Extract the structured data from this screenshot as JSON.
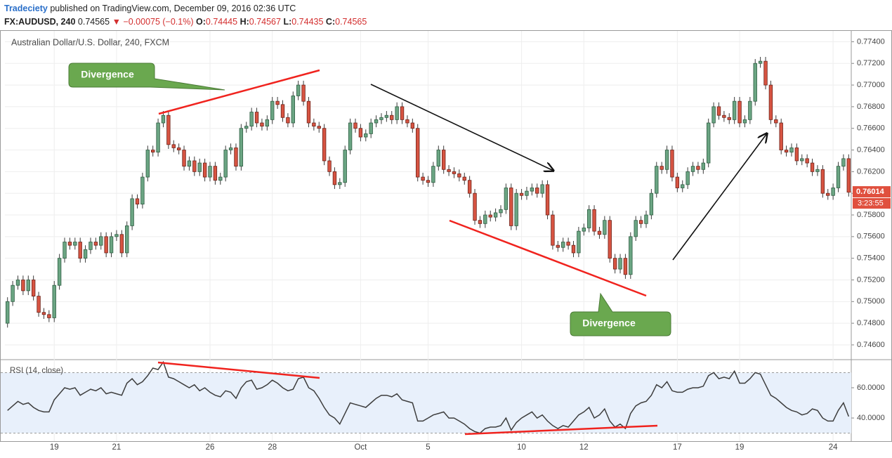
{
  "header": {
    "publisher": "Tradeciety",
    "published_text": "published on TradingView.com, December 09, 2016 02:36 UTC",
    "symbol": "FX:AUDUSD, 240",
    "last": "0.74565",
    "change": "−0.00075 (−0.1%)",
    "ohlc": [
      {
        "label": "O:",
        "value": "0.74445"
      },
      {
        "label": "H:",
        "value": "0.74567"
      },
      {
        "label": "L:",
        "value": "0.74435"
      },
      {
        "label": "C:",
        "value": "0.74565"
      }
    ]
  },
  "chart_data": [
    {
      "type": "candlestick",
      "title": "Australian Dollar/U.S. Dollar, 240, FXCM",
      "up_color": "#6ba583",
      "down_color": "#d75442",
      "grid": true,
      "categories": [
        null,
        null,
        null,
        null,
        null,
        null,
        null,
        null,
        null,
        "19",
        null,
        null,
        null,
        null,
        null,
        null,
        null,
        null,
        null,
        null,
        null,
        "21",
        null,
        null,
        null,
        null,
        null,
        null,
        null,
        null,
        null,
        null,
        null,
        null,
        null,
        null,
        null,
        null,
        null,
        "26",
        null,
        null,
        null,
        null,
        null,
        null,
        null,
        null,
        null,
        null,
        null,
        "28",
        null,
        null,
        null,
        null,
        null,
        null,
        null,
        null,
        null,
        null,
        null,
        null,
        null,
        null,
        null,
        null,
        "Oct",
        null,
        null,
        null,
        null,
        null,
        null,
        null,
        null,
        null,
        null,
        null,
        null,
        "5",
        null,
        null,
        null,
        null,
        null,
        null,
        null,
        null,
        null,
        null,
        null,
        null,
        null,
        null,
        null,
        null,
        null,
        "10",
        null,
        null,
        null,
        null,
        null,
        null,
        null,
        null,
        null,
        null,
        null,
        "12",
        null,
        null,
        null,
        null,
        null,
        null,
        null,
        null,
        null,
        null,
        null,
        null,
        null,
        null,
        null,
        null,
        null,
        "17",
        null,
        null,
        null,
        null,
        null,
        null,
        null,
        null,
        null,
        null,
        null,
        "19",
        null,
        null,
        null,
        null,
        null,
        null,
        null,
        null,
        null,
        null,
        null,
        null,
        null,
        null,
        null,
        null,
        null,
        "24",
        null,
        null,
        null
      ],
      "open": [
        0.748,
        0.75,
        0.7515,
        0.752,
        0.751,
        0.752,
        0.7505,
        0.749,
        0.7488,
        0.7485,
        0.7515,
        0.754,
        0.7555,
        0.7552,
        0.7555,
        0.754,
        0.7548,
        0.7555,
        0.7552,
        0.756,
        0.7545,
        0.756,
        0.7562,
        0.7545,
        0.757,
        0.7595,
        0.759,
        0.7615,
        0.764,
        0.7638,
        0.7665,
        0.7672,
        0.7645,
        0.7642,
        0.764,
        0.7625,
        0.763,
        0.762,
        0.7628,
        0.7615,
        0.7625,
        0.7612,
        0.7615,
        0.764,
        0.7642,
        0.7625,
        0.766,
        0.7662,
        0.7675,
        0.7665,
        0.7662,
        0.7668,
        0.7685,
        0.7682,
        0.767,
        0.7665,
        0.769,
        0.77,
        0.7685,
        0.7665,
        0.7662,
        0.766,
        0.763,
        0.762,
        0.7608,
        0.761,
        0.764,
        0.7665,
        0.766,
        0.7652,
        0.7655,
        0.7665,
        0.7668,
        0.767,
        0.7672,
        0.7668,
        0.768,
        0.7668,
        0.7665,
        0.766,
        0.7615,
        0.7612,
        0.761,
        0.7625,
        0.764,
        0.7622,
        0.762,
        0.7618,
        0.7615,
        0.7612,
        0.76,
        0.7575,
        0.7572,
        0.758,
        0.7578,
        0.7582,
        0.7585,
        0.7605,
        0.757,
        0.76,
        0.7598,
        0.7602,
        0.7605,
        0.76,
        0.7608,
        0.758,
        0.7552,
        0.755,
        0.7555,
        0.7552,
        0.7545,
        0.7565,
        0.7568,
        0.7585,
        0.7565,
        0.7562,
        0.7575,
        0.754,
        0.753,
        0.754,
        0.7525,
        0.756,
        0.7575,
        0.7572,
        0.758,
        0.76,
        0.7625,
        0.7622,
        0.764,
        0.7615,
        0.7605,
        0.7608,
        0.762,
        0.7625,
        0.7622,
        0.7628,
        0.7665,
        0.768,
        0.7672,
        0.767,
        0.7668,
        0.7685,
        0.7665,
        0.7668,
        0.7685,
        0.772,
        0.7722,
        0.77,
        0.7668,
        0.7665,
        0.764,
        0.7638,
        0.7642,
        0.763,
        0.7632,
        0.7628,
        0.762,
        0.7622,
        0.76,
        0.7598,
        0.7605,
        0.7625,
        0.7632
      ],
      "high": [
        0.7504,
        0.7519,
        0.7524,
        0.7524,
        0.7524,
        0.7524,
        0.7509,
        0.7494,
        0.7492,
        0.7519,
        0.7544,
        0.7559,
        0.7559,
        0.7559,
        0.7559,
        0.7552,
        0.7559,
        0.7559,
        0.7564,
        0.7564,
        0.7564,
        0.7566,
        0.7566,
        0.7574,
        0.7599,
        0.7599,
        0.7619,
        0.7644,
        0.7644,
        0.7669,
        0.7676,
        0.7676,
        0.7649,
        0.7646,
        0.7644,
        0.7634,
        0.7634,
        0.7632,
        0.7632,
        0.7629,
        0.7629,
        0.7619,
        0.7644,
        0.7646,
        0.7646,
        0.7664,
        0.7666,
        0.7679,
        0.7679,
        0.7669,
        0.7672,
        0.7689,
        0.7689,
        0.7686,
        0.7674,
        0.7694,
        0.7704,
        0.7704,
        0.7689,
        0.7669,
        0.7666,
        0.7664,
        0.7634,
        0.7624,
        0.7614,
        0.7644,
        0.7669,
        0.7669,
        0.7664,
        0.7659,
        0.7669,
        0.7672,
        0.7674,
        0.7676,
        0.7676,
        0.7684,
        0.7684,
        0.7672,
        0.7669,
        0.7664,
        0.7619,
        0.7616,
        0.7629,
        0.7644,
        0.7644,
        0.7626,
        0.7624,
        0.7622,
        0.7619,
        0.7616,
        0.7604,
        0.7579,
        0.7584,
        0.7584,
        0.7586,
        0.7589,
        0.7609,
        0.7609,
        0.7604,
        0.7604,
        0.7606,
        0.7609,
        0.7609,
        0.7612,
        0.7612,
        0.7584,
        0.7556,
        0.7559,
        0.7559,
        0.7556,
        0.7569,
        0.7572,
        0.7589,
        0.7589,
        0.7569,
        0.7579,
        0.7579,
        0.7544,
        0.7544,
        0.7544,
        0.7564,
        0.7579,
        0.7579,
        0.7584,
        0.7604,
        0.7629,
        0.7629,
        0.7644,
        0.7644,
        0.7619,
        0.7612,
        0.7624,
        0.7629,
        0.7629,
        0.7632,
        0.7669,
        0.7684,
        0.7684,
        0.7676,
        0.7674,
        0.7689,
        0.7689,
        0.7672,
        0.7689,
        0.7724,
        0.7726,
        0.7726,
        0.7704,
        0.7672,
        0.7669,
        0.7644,
        0.7646,
        0.7646,
        0.7636,
        0.7636,
        0.7632,
        0.7626,
        0.7626,
        0.7604,
        0.7609,
        0.7629,
        0.7636,
        0.7636
      ],
      "low": [
        0.7476,
        0.7496,
        0.7511,
        0.7506,
        0.7506,
        0.7501,
        0.7486,
        0.7484,
        0.7481,
        0.7481,
        0.7511,
        0.7536,
        0.7548,
        0.7548,
        0.7536,
        0.7536,
        0.7544,
        0.7548,
        0.7548,
        0.7541,
        0.7541,
        0.7556,
        0.7541,
        0.7541,
        0.7566,
        0.7586,
        0.7586,
        0.7611,
        0.7634,
        0.7634,
        0.7661,
        0.7641,
        0.7638,
        0.7636,
        0.7621,
        0.7621,
        0.7616,
        0.7616,
        0.7611,
        0.7611,
        0.7608,
        0.7608,
        0.7611,
        0.7636,
        0.7621,
        0.7621,
        0.7656,
        0.7658,
        0.7661,
        0.7658,
        0.7658,
        0.7664,
        0.7678,
        0.7666,
        0.7661,
        0.7661,
        0.7686,
        0.7681,
        0.7661,
        0.7658,
        0.7656,
        0.7626,
        0.7616,
        0.7604,
        0.7604,
        0.7606,
        0.7636,
        0.7656,
        0.7648,
        0.7648,
        0.7651,
        0.7661,
        0.7664,
        0.7666,
        0.7664,
        0.7664,
        0.7664,
        0.7661,
        0.7656,
        0.7611,
        0.7608,
        0.7606,
        0.7606,
        0.7621,
        0.7618,
        0.7616,
        0.7614,
        0.7611,
        0.7608,
        0.7596,
        0.7571,
        0.7568,
        0.7568,
        0.7574,
        0.7574,
        0.7578,
        0.7581,
        0.7566,
        0.7566,
        0.7594,
        0.7594,
        0.7598,
        0.7596,
        0.7596,
        0.7576,
        0.7548,
        0.7546,
        0.7546,
        0.7548,
        0.7541,
        0.7541,
        0.7561,
        0.7564,
        0.7561,
        0.7558,
        0.7558,
        0.7536,
        0.7526,
        0.7526,
        0.7521,
        0.7521,
        0.7556,
        0.7568,
        0.7568,
        0.7576,
        0.7596,
        0.7618,
        0.7618,
        0.7611,
        0.7601,
        0.7601,
        0.7604,
        0.7616,
        0.7618,
        0.7618,
        0.7624,
        0.7661,
        0.7668,
        0.7666,
        0.7664,
        0.7664,
        0.7661,
        0.7661,
        0.7664,
        0.7681,
        0.7716,
        0.7696,
        0.7664,
        0.7661,
        0.7636,
        0.7634,
        0.7634,
        0.7626,
        0.7626,
        0.7624,
        0.7616,
        0.7616,
        0.7596,
        0.7594,
        0.7594,
        0.7601,
        0.7621,
        0.7597
      ],
      "close": [
        0.75,
        0.7515,
        0.752,
        0.751,
        0.752,
        0.7505,
        0.749,
        0.7488,
        0.7485,
        0.7515,
        0.754,
        0.7555,
        0.7552,
        0.7555,
        0.754,
        0.7548,
        0.7555,
        0.7552,
        0.756,
        0.7545,
        0.756,
        0.7562,
        0.7545,
        0.757,
        0.7595,
        0.759,
        0.7615,
        0.764,
        0.7638,
        0.7665,
        0.7672,
        0.7645,
        0.7642,
        0.764,
        0.7625,
        0.763,
        0.762,
        0.7628,
        0.7615,
        0.7625,
        0.7612,
        0.7615,
        0.764,
        0.7642,
        0.7625,
        0.766,
        0.7662,
        0.7675,
        0.7665,
        0.7662,
        0.7668,
        0.7685,
        0.7682,
        0.767,
        0.7665,
        0.769,
        0.77,
        0.7685,
        0.7665,
        0.7662,
        0.766,
        0.763,
        0.762,
        0.7608,
        0.761,
        0.764,
        0.7665,
        0.766,
        0.7652,
        0.7655,
        0.7665,
        0.7668,
        0.767,
        0.7672,
        0.7668,
        0.768,
        0.7668,
        0.7665,
        0.766,
        0.7615,
        0.7612,
        0.761,
        0.7625,
        0.764,
        0.7622,
        0.762,
        0.7618,
        0.7615,
        0.7612,
        0.76,
        0.7575,
        0.7572,
        0.758,
        0.7578,
        0.7582,
        0.7585,
        0.7605,
        0.757,
        0.76,
        0.7598,
        0.7602,
        0.7605,
        0.76,
        0.7608,
        0.758,
        0.7552,
        0.755,
        0.7555,
        0.7552,
        0.7545,
        0.7565,
        0.7568,
        0.7585,
        0.7565,
        0.7562,
        0.7575,
        0.754,
        0.753,
        0.754,
        0.7525,
        0.756,
        0.7575,
        0.7572,
        0.758,
        0.76,
        0.7625,
        0.7622,
        0.764,
        0.7615,
        0.7605,
        0.7608,
        0.762,
        0.7625,
        0.7622,
        0.7628,
        0.7665,
        0.768,
        0.7672,
        0.767,
        0.7668,
        0.7685,
        0.7665,
        0.7668,
        0.7685,
        0.772,
        0.7722,
        0.77,
        0.7668,
        0.7665,
        0.764,
        0.7638,
        0.7642,
        0.763,
        0.7632,
        0.7628,
        0.762,
        0.7622,
        0.76,
        0.7598,
        0.7605,
        0.7625,
        0.7632,
        0.7601
      ],
      "ylim": [
        0.7447,
        0.775
      ],
      "yticks": [
        {
          "value": 0.746,
          "label": "0.74600"
        },
        {
          "value": 0.748,
          "label": "0.74800"
        },
        {
          "value": 0.75,
          "label": "0.75000"
        },
        {
          "value": 0.752,
          "label": "0.75200"
        },
        {
          "value": 0.754,
          "label": "0.75400"
        },
        {
          "value": 0.756,
          "label": "0.75600"
        },
        {
          "value": 0.758,
          "label": "0.75800"
        },
        {
          "value": 0.76,
          "label": "0.76000"
        },
        {
          "value": 0.762,
          "label": "0.76200"
        },
        {
          "value": 0.764,
          "label": "0.76400"
        },
        {
          "value": 0.766,
          "label": "0.76600"
        },
        {
          "value": 0.768,
          "label": "0.76800"
        },
        {
          "value": 0.77,
          "label": "0.77000"
        },
        {
          "value": 0.772,
          "label": "0.77200"
        },
        {
          "value": 0.774,
          "label": "0.77400"
        }
      ],
      "last_price": 0.76014,
      "countdown": "3:23:55",
      "annotations": [
        "Divergence",
        "Divergence"
      ]
    },
    {
      "type": "line",
      "title": "RSI (14, close)",
      "color": "#3d3d3d",
      "band": [
        30,
        70
      ],
      "band_color": "#e8f0fb",
      "values": [
        45,
        48,
        51,
        49,
        50,
        47,
        45,
        44,
        44,
        52,
        56,
        60,
        59,
        60,
        55,
        57,
        59,
        58,
        60,
        56,
        57,
        56,
        55,
        63,
        66,
        62,
        64,
        68,
        73,
        72,
        77,
        67,
        66,
        64,
        62,
        60,
        62,
        58,
        60,
        57,
        55,
        54,
        58,
        57,
        53,
        60,
        64,
        65,
        59,
        60,
        62,
        65,
        63,
        60,
        58,
        59,
        66,
        67,
        60,
        58,
        53,
        47,
        42,
        40,
        36,
        43,
        50,
        49,
        48,
        47,
        50,
        53,
        55,
        55,
        54,
        56,
        52,
        51,
        50,
        38,
        38,
        40,
        42,
        43,
        44,
        40,
        40,
        38,
        36,
        33,
        31,
        30,
        33,
        34,
        34,
        35,
        40,
        32,
        37,
        40,
        42,
        44,
        40,
        42,
        38,
        35,
        33,
        35,
        34,
        38,
        42,
        44,
        47,
        40,
        42,
        46,
        38,
        34,
        36,
        33,
        43,
        48,
        50,
        51,
        55,
        62,
        60,
        64,
        58,
        57,
        57,
        59,
        60,
        60,
        61,
        68,
        70,
        66,
        67,
        66,
        71,
        63,
        63,
        66,
        70,
        69,
        62,
        55,
        53,
        50,
        47,
        45,
        44,
        42,
        43,
        46,
        45,
        40,
        38,
        38,
        45,
        50,
        41
      ],
      "ylim": [
        24.7,
        78.1
      ],
      "yticks": [
        {
          "value": 40,
          "label": "40.0000"
        },
        {
          "value": 60,
          "label": "60.0000"
        }
      ]
    }
  ]
}
